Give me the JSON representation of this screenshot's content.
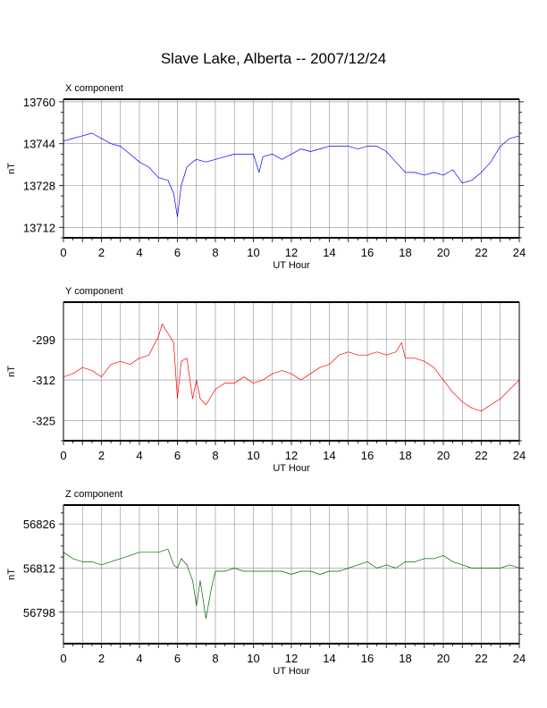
{
  "title": "Slave Lake, Alberta -- 2007/12/24",
  "chart_data": [
    {
      "type": "line",
      "panel_title": "X component",
      "xlabel": "UT Hour",
      "ylabel": "nT",
      "color": "#0000ff",
      "xlim": [
        0,
        24
      ],
      "ylim": [
        13708,
        13761
      ],
      "xticks": [
        0,
        2,
        4,
        6,
        8,
        10,
        12,
        14,
        16,
        18,
        20,
        22,
        24
      ],
      "yticks": [
        13712,
        13728,
        13744,
        13760
      ],
      "grid": true,
      "series": [
        {
          "x": [
            0,
            0.5,
            1,
            1.5,
            2,
            2.5,
            3,
            3.5,
            4,
            4.5,
            5,
            5.5,
            5.8,
            6,
            6.2,
            6.5,
            6.8,
            7,
            7.5,
            8,
            8.5,
            9,
            9.5,
            10,
            10.3,
            10.5,
            11,
            11.5,
            12,
            12.5,
            13,
            13.5,
            14,
            14.5,
            15,
            15.5,
            16,
            16.5,
            17,
            17.5,
            18,
            18.5,
            19,
            19.5,
            20,
            20.5,
            21,
            21.5,
            22,
            22.5,
            23,
            23.5,
            24
          ],
          "y": [
            13745,
            13746,
            13747,
            13748,
            13746,
            13744,
            13743,
            13740,
            13737,
            13735,
            13731,
            13730,
            13725,
            13716,
            13728,
            13735,
            13737,
            13738,
            13737,
            13738,
            13739,
            13740,
            13740,
            13740,
            13733,
            13739,
            13740,
            13738,
            13740,
            13742,
            13741,
            13742,
            13743,
            13743,
            13743,
            13742,
            13743,
            13743,
            13741,
            13737,
            13733,
            13733,
            13732,
            13733,
            13732,
            13734,
            13729,
            13730,
            13733,
            13737,
            13743,
            13746,
            13747
          ]
        }
      ]
    },
    {
      "type": "line",
      "panel_title": "Y component",
      "xlabel": "UT Hour",
      "ylabel": "nT",
      "color": "#ff0000",
      "xlim": [
        0,
        24
      ],
      "ylim": [
        -331.5,
        -287
      ],
      "xticks": [
        0,
        2,
        4,
        6,
        8,
        10,
        12,
        14,
        16,
        18,
        20,
        22,
        24
      ],
      "yticks": [
        -299,
        -312,
        -325
      ],
      "grid": true,
      "series": [
        {
          "x": [
            0,
            0.5,
            1,
            1.5,
            2,
            2.5,
            3,
            3.5,
            4,
            4.5,
            5,
            5.2,
            5.5,
            5.8,
            6,
            6.2,
            6.5,
            6.8,
            7,
            7.2,
            7.5,
            8,
            8.5,
            9,
            9.5,
            10,
            10.5,
            11,
            11.5,
            12,
            12.5,
            13,
            13.5,
            14,
            14.5,
            15,
            15.5,
            16,
            16.5,
            17,
            17.5,
            17.8,
            18,
            18.5,
            19,
            19.5,
            20,
            20.5,
            21,
            21.5,
            22,
            22.5,
            23,
            23.5,
            24
          ],
          "y": [
            -311,
            -310,
            -308,
            -309,
            -311,
            -307,
            -306,
            -307,
            -305,
            -304,
            -298,
            -294,
            -297,
            -300,
            -318,
            -306,
            -305,
            -318,
            -312,
            -318,
            -320,
            -315,
            -313,
            -313,
            -311,
            -313,
            -312,
            -310,
            -309,
            -310,
            -312,
            -310,
            -308,
            -307,
            -304,
            -303,
            -304,
            -304,
            -303,
            -304,
            -303,
            -300,
            -305,
            -305,
            -306,
            -308,
            -312,
            -316,
            -319,
            -321,
            -322,
            -320,
            -318,
            -315,
            -312
          ]
        }
      ]
    },
    {
      "type": "line",
      "panel_title": "Z component",
      "xlabel": "UT Hour",
      "ylabel": "nT",
      "color": "#006400",
      "xlim": [
        0,
        24
      ],
      "ylim": [
        56788,
        56832
      ],
      "xticks": [
        0,
        2,
        4,
        6,
        8,
        10,
        12,
        14,
        16,
        18,
        20,
        22,
        24
      ],
      "yticks": [
        56798,
        56812,
        56826
      ],
      "grid": true,
      "series": [
        {
          "x": [
            0,
            0.5,
            1,
            1.5,
            2,
            2.5,
            3,
            3.5,
            4,
            4.5,
            5,
            5.5,
            5.8,
            6,
            6.2,
            6.5,
            6.8,
            7,
            7.2,
            7.5,
            7.8,
            8,
            8.5,
            9,
            9.5,
            10,
            10.5,
            11,
            11.5,
            12,
            12.5,
            13,
            13.5,
            14,
            14.5,
            15,
            15.5,
            16,
            16.5,
            17,
            17.5,
            18,
            18.5,
            19,
            19.5,
            20,
            20.5,
            21,
            21.5,
            22,
            22.5,
            23,
            23.5,
            24
          ],
          "y": [
            56817,
            56815,
            56814,
            56814,
            56813,
            56814,
            56815,
            56816,
            56817,
            56817,
            56817,
            56818,
            56813,
            56812,
            56815,
            56813,
            56808,
            56800,
            56808,
            56796,
            56806,
            56811,
            56811,
            56812,
            56811,
            56811,
            56811,
            56811,
            56811,
            56810,
            56811,
            56811,
            56810,
            56811,
            56811,
            56812,
            56813,
            56814,
            56812,
            56813,
            56812,
            56814,
            56814,
            56815,
            56815,
            56816,
            56814,
            56813,
            56812,
            56812,
            56812,
            56812,
            56813,
            56812
          ]
        }
      ]
    }
  ]
}
